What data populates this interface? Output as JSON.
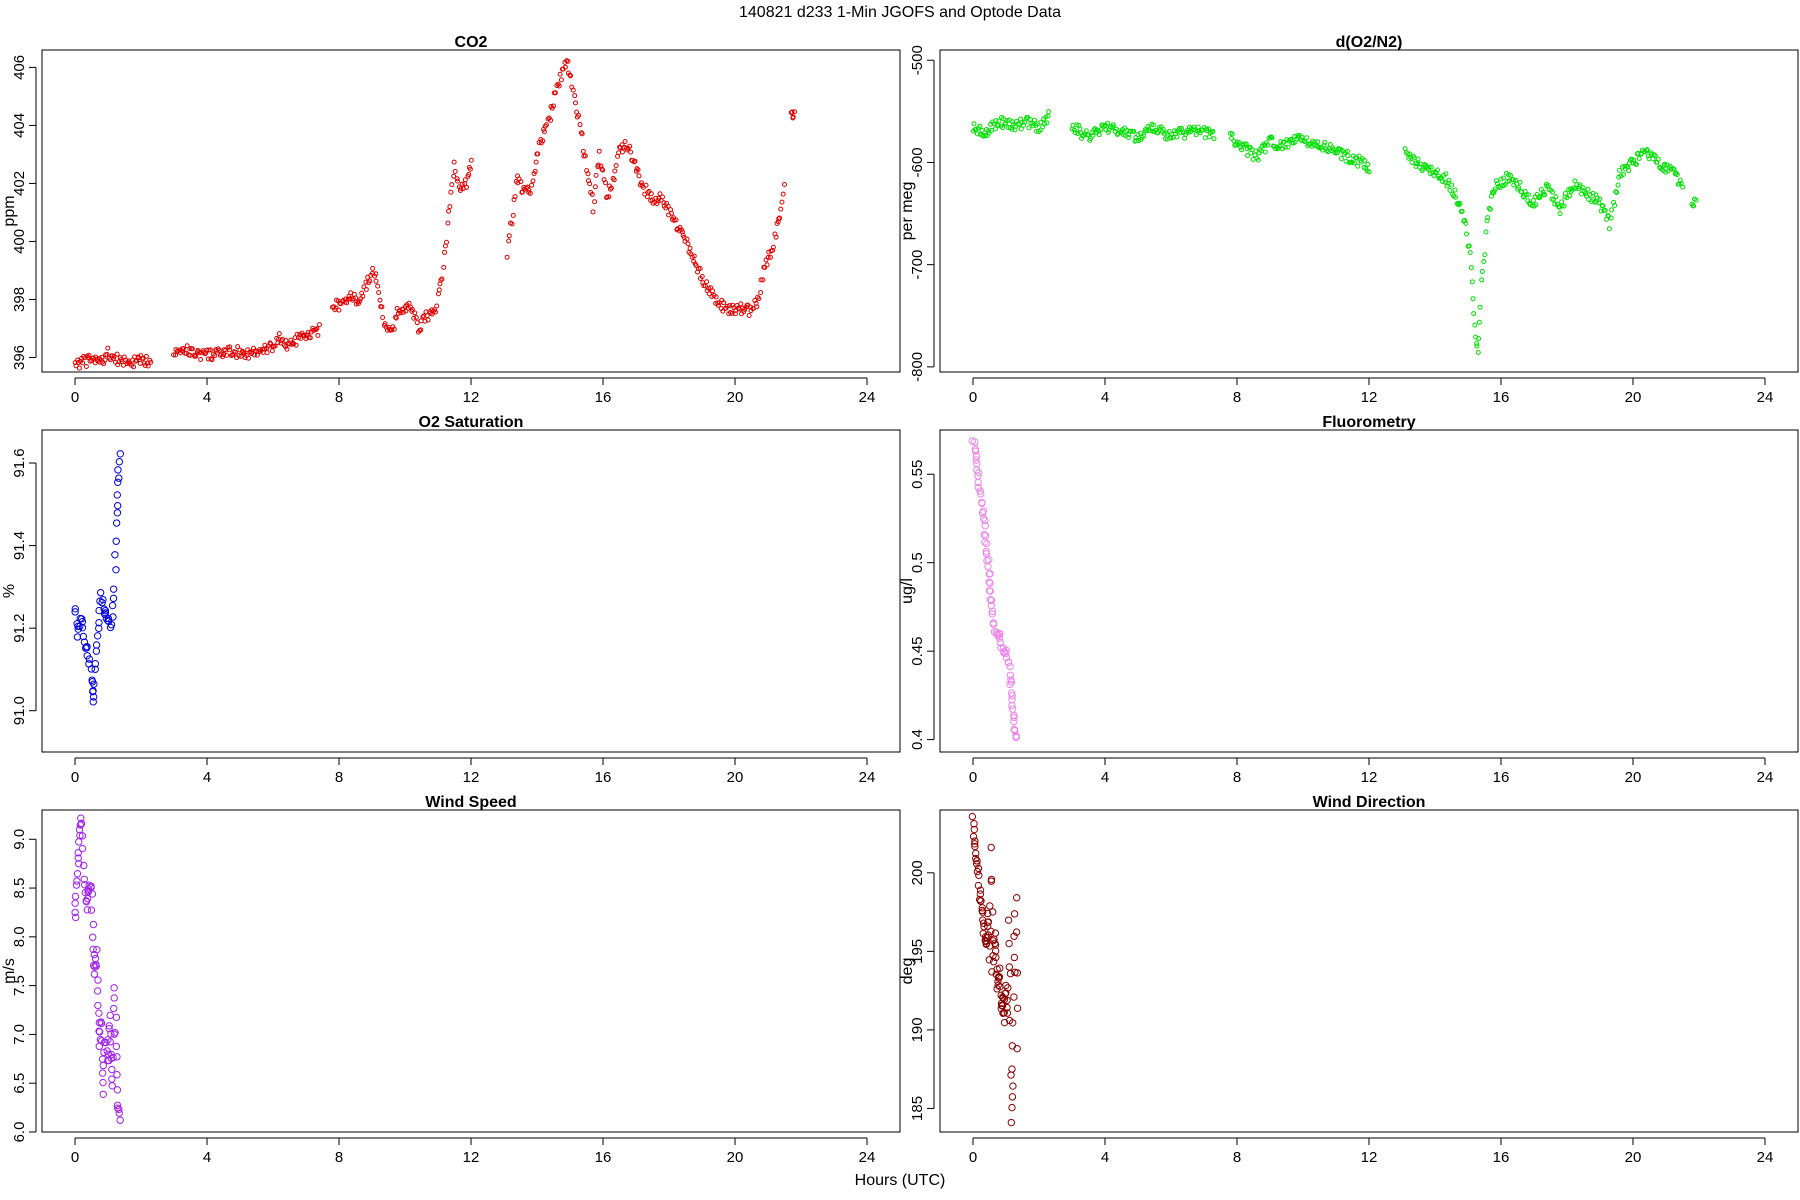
{
  "figure": {
    "title": "140821   d233   1-Min  JGOFS and Optode Data",
    "xlabel": "Hours (UTC)"
  },
  "chart_data": [
    {
      "type": "scatter",
      "title": "CO2",
      "ylabel": "ppm",
      "color": "#e00000",
      "xlim": [
        -1,
        25
      ],
      "ylim": [
        395.5,
        406.6
      ],
      "xticks": [
        0,
        4,
        8,
        12,
        16,
        20,
        24
      ],
      "yticks": [
        396,
        398,
        400,
        402,
        404,
        406
      ],
      "grid": false,
      "segments": [
        [
          [
            0,
            395.8
          ],
          [
            0.3,
            395.85
          ],
          [
            0.5,
            395.95
          ],
          [
            0.8,
            395.85
          ],
          [
            1.0,
            396.15
          ],
          [
            1.2,
            395.95
          ],
          [
            1.5,
            395.85
          ],
          [
            1.8,
            395.85
          ],
          [
            2.3,
            395.9
          ]
        ],
        [
          [
            3.0,
            396.25
          ],
          [
            3.3,
            396.3
          ],
          [
            3.6,
            396.15
          ],
          [
            3.9,
            396.1
          ],
          [
            4.3,
            396.1
          ],
          [
            4.8,
            396.2
          ],
          [
            5.3,
            396.15
          ],
          [
            5.7,
            396.2
          ],
          [
            6.0,
            396.4
          ],
          [
            6.2,
            396.7
          ],
          [
            6.4,
            396.4
          ],
          [
            6.7,
            396.6
          ],
          [
            7.0,
            396.7
          ],
          [
            7.4,
            396.95
          ]
        ],
        [
          [
            7.8,
            397.8
          ],
          [
            8.1,
            397.8
          ],
          [
            8.4,
            398.1
          ],
          [
            8.6,
            397.9
          ],
          [
            8.9,
            398.7
          ],
          [
            9.1,
            399.0
          ],
          [
            9.4,
            397.0
          ],
          [
            9.6,
            396.8
          ],
          [
            9.8,
            397.7
          ],
          [
            10.0,
            397.7
          ],
          [
            10.2,
            397.7
          ],
          [
            10.4,
            397.0
          ],
          [
            10.6,
            397.4
          ],
          [
            10.9,
            397.6
          ],
          [
            11.1,
            398.5
          ],
          [
            11.3,
            400.5
          ],
          [
            11.5,
            402.6
          ],
          [
            11.7,
            401.8
          ],
          [
            11.9,
            402.1
          ],
          [
            12.0,
            402.8
          ]
        ],
        [
          [
            13.1,
            399.6
          ],
          [
            13.4,
            402.2
          ],
          [
            13.6,
            401.7
          ],
          [
            13.8,
            401.7
          ],
          [
            14.1,
            403.5
          ],
          [
            14.3,
            403.9
          ],
          [
            14.5,
            404.8
          ],
          [
            14.7,
            405.6
          ],
          [
            14.9,
            406.3
          ],
          [
            15.1,
            405.3
          ],
          [
            15.3,
            404.0
          ],
          [
            15.5,
            402.6
          ],
          [
            15.7,
            401.2
          ],
          [
            15.9,
            403.0
          ],
          [
            16.1,
            401.6
          ],
          [
            16.3,
            402.0
          ],
          [
            16.5,
            403.2
          ],
          [
            16.7,
            403.3
          ],
          [
            16.9,
            402.9
          ],
          [
            17.2,
            401.9
          ],
          [
            17.5,
            401.5
          ],
          [
            17.8,
            401.5
          ],
          [
            18.2,
            400.6
          ],
          [
            18.6,
            399.8
          ],
          [
            19.0,
            398.8
          ],
          [
            19.4,
            398.0
          ],
          [
            19.8,
            397.6
          ],
          [
            20.2,
            397.7
          ],
          [
            20.5,
            397.6
          ],
          [
            20.7,
            398.0
          ],
          [
            20.9,
            399.2
          ],
          [
            21.1,
            399.6
          ],
          [
            21.3,
            400.6
          ],
          [
            21.5,
            401.8
          ]
        ],
        [
          [
            21.7,
            404.4
          ],
          [
            21.8,
            404.4
          ]
        ]
      ]
    },
    {
      "type": "scatter",
      "title": "d(O2/N2)",
      "ylabel": "per meg",
      "color": "#00e000",
      "xlim": [
        -1,
        25
      ],
      "ylim": [
        -805,
        -490
      ],
      "xticks": [
        0,
        4,
        8,
        12,
        16,
        20,
        24
      ],
      "yticks": [
        -800,
        -700,
        -600,
        -500
      ],
      "grid": false,
      "segments": [
        [
          [
            0,
            -565
          ],
          [
            0.4,
            -570
          ],
          [
            0.8,
            -560
          ],
          [
            1.2,
            -565
          ],
          [
            1.6,
            -560
          ],
          [
            2.0,
            -565
          ],
          [
            2.3,
            -555
          ]
        ],
        [
          [
            3.0,
            -565
          ],
          [
            3.5,
            -575
          ],
          [
            4.0,
            -565
          ],
          [
            4.5,
            -570
          ],
          [
            5.0,
            -575
          ],
          [
            5.5,
            -565
          ],
          [
            6.0,
            -575
          ],
          [
            6.5,
            -570
          ],
          [
            7.0,
            -570
          ],
          [
            7.3,
            -575
          ]
        ],
        [
          [
            7.8,
            -575
          ],
          [
            8.2,
            -585
          ],
          [
            8.6,
            -595
          ],
          [
            9.0,
            -580
          ],
          [
            9.4,
            -585
          ],
          [
            9.8,
            -575
          ],
          [
            10.2,
            -580
          ],
          [
            10.6,
            -585
          ],
          [
            11.0,
            -590
          ],
          [
            11.4,
            -595
          ],
          [
            11.8,
            -600
          ],
          [
            12.0,
            -605
          ]
        ],
        [
          [
            13.1,
            -590
          ],
          [
            13.5,
            -600
          ],
          [
            13.9,
            -610
          ],
          [
            14.3,
            -615
          ],
          [
            14.6,
            -630
          ],
          [
            14.9,
            -655
          ],
          [
            15.1,
            -700
          ],
          [
            15.2,
            -760
          ],
          [
            15.3,
            -790
          ],
          [
            15.4,
            -720
          ],
          [
            15.6,
            -650
          ],
          [
            15.8,
            -625
          ],
          [
            16.2,
            -615
          ],
          [
            16.6,
            -625
          ],
          [
            17.0,
            -640
          ],
          [
            17.4,
            -625
          ],
          [
            17.8,
            -645
          ],
          [
            18.2,
            -620
          ],
          [
            18.6,
            -630
          ],
          [
            19.0,
            -640
          ],
          [
            19.3,
            -660
          ],
          [
            19.6,
            -610
          ],
          [
            20.0,
            -600
          ],
          [
            20.4,
            -590
          ],
          [
            20.8,
            -600
          ],
          [
            21.2,
            -610
          ],
          [
            21.5,
            -625
          ]
        ],
        [
          [
            21.8,
            -645
          ],
          [
            21.9,
            -640
          ]
        ]
      ]
    },
    {
      "type": "scatter",
      "title": "O2 Saturation",
      "ylabel": "%",
      "color": "#0000e0",
      "xlim": [
        -1,
        25
      ],
      "ylim": [
        90.9,
        91.68
      ],
      "xticks": [
        0,
        4,
        8,
        12,
        16,
        20,
        24
      ],
      "yticks": [
        91.0,
        91.2,
        91.4,
        91.6
      ],
      "grid": false,
      "segments": [
        [
          [
            0.0,
            91.25
          ],
          [
            0.1,
            91.18
          ],
          [
            0.2,
            91.23
          ],
          [
            0.3,
            91.16
          ],
          [
            0.4,
            91.14
          ],
          [
            0.5,
            91.08
          ],
          [
            0.55,
            91.02
          ],
          [
            0.6,
            91.12
          ],
          [
            0.7,
            91.2
          ],
          [
            0.8,
            91.28
          ],
          [
            0.9,
            91.24
          ],
          [
            1.0,
            91.22
          ],
          [
            1.1,
            91.2
          ],
          [
            1.2,
            91.3
          ],
          [
            1.25,
            91.45
          ],
          [
            1.3,
            91.55
          ],
          [
            1.35,
            91.63
          ]
        ]
      ]
    },
    {
      "type": "scatter",
      "title": "Fluorometry",
      "ylabel": "ug/l",
      "color": "#ee82ee",
      "xlim": [
        -1,
        25
      ],
      "ylim": [
        0.393,
        0.575
      ],
      "xticks": [
        0,
        4,
        8,
        12,
        16,
        20,
        24
      ],
      "yticks": [
        0.4,
        0.45,
        0.5,
        0.55
      ],
      "grid": false,
      "segments": [
        [
          [
            0.0,
            0.57
          ],
          [
            0.1,
            0.56
          ],
          [
            0.15,
            0.55
          ],
          [
            0.2,
            0.54
          ],
          [
            0.3,
            0.53
          ],
          [
            0.35,
            0.52
          ],
          [
            0.4,
            0.51
          ],
          [
            0.45,
            0.5
          ],
          [
            0.5,
            0.49
          ],
          [
            0.55,
            0.48
          ],
          [
            0.6,
            0.47
          ],
          [
            0.7,
            0.46
          ],
          [
            0.8,
            0.46
          ],
          [
            0.9,
            0.45
          ],
          [
            1.0,
            0.45
          ],
          [
            1.1,
            0.44
          ],
          [
            1.15,
            0.43
          ],
          [
            1.2,
            0.42
          ],
          [
            1.25,
            0.41
          ],
          [
            1.3,
            0.4
          ]
        ]
      ]
    },
    {
      "type": "scatter",
      "title": "Wind Speed",
      "ylabel": "m/s",
      "color": "#a020f0",
      "xlim": [
        -1,
        25
      ],
      "ylim": [
        6.0,
        9.3
      ],
      "xticks": [
        0,
        4,
        8,
        12,
        16,
        20,
        24
      ],
      "yticks": [
        6.0,
        6.5,
        7.0,
        7.5,
        8.0,
        8.5,
        9.0
      ],
      "grid": false,
      "segments": [
        [
          [
            0.0,
            8.2
          ],
          [
            0.05,
            8.5
          ],
          [
            0.1,
            8.8
          ],
          [
            0.15,
            9.1
          ],
          [
            0.2,
            9.2
          ],
          [
            0.3,
            8.6
          ],
          [
            0.35,
            8.3
          ],
          [
            0.4,
            8.5
          ],
          [
            0.5,
            8.55
          ],
          [
            0.55,
            8.0
          ],
          [
            0.6,
            7.6
          ],
          [
            0.65,
            7.85
          ],
          [
            0.7,
            7.3
          ],
          [
            0.75,
            6.9
          ],
          [
            0.8,
            7.15
          ],
          [
            0.85,
            6.4
          ],
          [
            0.9,
            6.95
          ],
          [
            1.0,
            6.7
          ],
          [
            1.05,
            7.2
          ],
          [
            1.1,
            6.8
          ],
          [
            1.15,
            6.5
          ],
          [
            1.2,
            7.5
          ],
          [
            1.25,
            6.9
          ],
          [
            1.3,
            6.3
          ],
          [
            1.35,
            6.15
          ]
        ]
      ]
    },
    {
      "type": "scatter",
      "title": "Wind Direction",
      "ylabel": "deg",
      "color": "#8b0000",
      "xlim": [
        -1,
        25
      ],
      "ylim": [
        183.5,
        204
      ],
      "xticks": [
        0,
        4,
        8,
        12,
        16,
        20,
        24
      ],
      "yticks": [
        185,
        190,
        195,
        200
      ],
      "grid": false,
      "segments": [
        [
          [
            0.0,
            203.5
          ],
          [
            0.05,
            202.0
          ],
          [
            0.1,
            201.0
          ],
          [
            0.15,
            200.3
          ],
          [
            0.2,
            199.0
          ],
          [
            0.25,
            198.0
          ],
          [
            0.3,
            197.2
          ],
          [
            0.35,
            196.0
          ],
          [
            0.4,
            195.5
          ],
          [
            0.45,
            197.5
          ],
          [
            0.5,
            194.5
          ],
          [
            0.55,
            201.5
          ],
          [
            0.6,
            193.5
          ],
          [
            0.65,
            196.2
          ],
          [
            0.7,
            194.5
          ],
          [
            0.75,
            192.5
          ],
          [
            0.8,
            193.8
          ],
          [
            0.85,
            191.5
          ],
          [
            0.9,
            192.0
          ],
          [
            0.95,
            190.5
          ],
          [
            1.0,
            193.0
          ],
          [
            1.05,
            191.0
          ],
          [
            1.1,
            197.0
          ],
          [
            1.15,
            184.0
          ],
          [
            1.2,
            187.5
          ],
          [
            1.25,
            193.5
          ],
          [
            1.3,
            198.5
          ],
          [
            1.35,
            189.0
          ]
        ]
      ]
    }
  ]
}
